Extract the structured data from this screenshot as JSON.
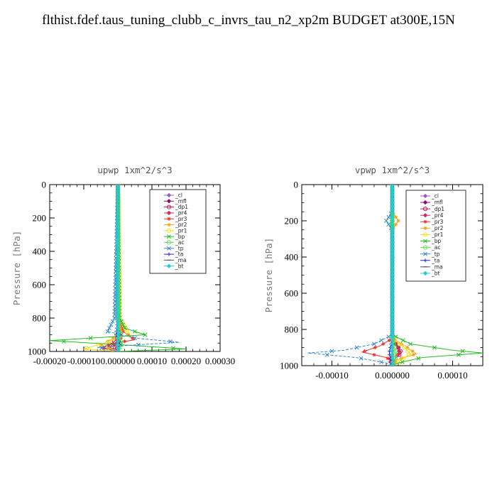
{
  "title": "flthist.fdef.taus_tuning_clubb_c_invrs_tau_n2_xp2m  BUDGET at300E,15N",
  "legend_entries": [
    "_cl",
    "_mfl",
    "_dp1",
    "_pr4",
    "_pr3",
    "_pr2",
    "_pr1",
    "_bp",
    "_ac",
    "_tp",
    "_ta",
    "_ma",
    "_bt"
  ],
  "colors": {
    "_cl": "#9b59d0",
    "_mfl": "#8b0a7a",
    "_dp1": "#c0185a",
    "_pr4": "#d2285a",
    "_pr3": "#ee3030",
    "_pr2": "#f5a020",
    "_pr1": "#f0e020",
    "_bp": "#22bb22",
    "_ac": "#66dd55",
    "_tp": "#3388cc",
    "_ta": "#2222cc",
    "_ma": "#555555",
    "_bt": "#22cccc"
  },
  "chart_data": [
    {
      "type": "line",
      "title": "upwp  1xm^2/s^3",
      "ylabel": "Pressure [hPa]",
      "xlabel": "",
      "y_inverted": true,
      "ylim": [
        1000,
        0
      ],
      "xlim": [
        -0.0002,
        0.0003
      ],
      "xticks": [
        -0.0002,
        -0.0001,
        0.0,
        0.0001,
        0.0002,
        0.0003
      ],
      "xtick_labels": [
        "-0.00020",
        "-0.00010",
        "0.000000",
        "0.00010",
        "0.00020",
        "0.00030"
      ],
      "yticks": [
        0,
        200,
        400,
        600,
        800,
        1000
      ],
      "ytick_labels": [
        "0",
        "200",
        "400",
        "600",
        "800",
        "1000"
      ],
      "legend_position": "top-right",
      "series": [
        {
          "name": "_cl",
          "pressure": [
            0,
            200,
            400,
            600,
            800,
            900,
            950,
            1000
          ],
          "values": [
            0,
            0,
            0,
            0,
            0,
            0,
            0,
            0
          ]
        },
        {
          "name": "_mfl",
          "pressure": [
            0,
            200,
            400,
            600,
            800,
            900,
            950,
            1000
          ],
          "values": [
            0,
            0,
            0,
            0,
            0,
            0,
            0,
            0
          ]
        },
        {
          "name": "_dp1",
          "pressure": [
            0,
            800,
            900,
            940,
            970,
            990,
            1000
          ],
          "values": [
            0,
            0,
            5e-06,
            -1e-05,
            -3e-05,
            -5e-06,
            0
          ]
        },
        {
          "name": "_pr4",
          "pressure": [
            0,
            800,
            900,
            930,
            960,
            990,
            1000
          ],
          "values": [
            0,
            0,
            5e-06,
            1e-05,
            -1e-05,
            0,
            0
          ]
        },
        {
          "name": "_pr3",
          "pressure": [
            0,
            800,
            880,
            930,
            950,
            975,
            1000
          ],
          "values": [
            0,
            0,
            1.5e-05,
            5e-05,
            -1e-05,
            -5e-05,
            0
          ]
        },
        {
          "name": "_pr2",
          "pressure": [
            0,
            800,
            880,
            930,
            960,
            985,
            1000
          ],
          "values": [
            0,
            0,
            1e-05,
            -2e-05,
            -5e-05,
            -2e-05,
            0
          ]
        },
        {
          "name": "_pr1",
          "pressure": [
            0,
            100,
            300,
            800,
            850,
            900,
            950,
            985,
            1000
          ],
          "values": [
            0,
            3e-06,
            3e-06,
            5e-06,
            2e-05,
            3e-05,
            -4e-05,
            -0.0001,
            0
          ]
        },
        {
          "name": "_bp",
          "pressure": [
            0,
            800,
            860,
            900,
            935,
            965,
            985,
            1000
          ],
          "values": [
            0,
            5e-06,
            2e-05,
            8e-05,
            -0.0002,
            5e-05,
            0.0002,
            0
          ]
        },
        {
          "name": "_ac",
          "pressure": [
            0,
            800,
            900,
            950,
            1000
          ],
          "values": [
            0,
            0,
            5e-06,
            1e-05,
            0
          ]
        },
        {
          "name": "_tp",
          "pressure": [
            0,
            800,
            880,
            920,
            945,
            975,
            1000
          ],
          "values": [
            0,
            -1e-05,
            -3e-05,
            5e-05,
            0.00018,
            -6e-05,
            0
          ]
        },
        {
          "name": "_ta",
          "pressure": [
            0,
            800,
            900,
            950,
            1000
          ],
          "values": [
            0,
            0,
            -5e-06,
            5e-06,
            0
          ]
        },
        {
          "name": "_ma",
          "pressure": [
            0,
            800,
            900,
            950,
            1000
          ],
          "values": [
            0,
            0,
            0,
            0,
            0
          ]
        },
        {
          "name": "_bt",
          "pressure": [
            0,
            800,
            900,
            950,
            1000
          ],
          "values": [
            0,
            0,
            0,
            0,
            0
          ]
        }
      ]
    },
    {
      "type": "line",
      "title": "vpwp  1xm^2/s^3",
      "ylabel": "Pressure [hPa]",
      "xlabel": "",
      "y_inverted": true,
      "ylim": [
        1000,
        0
      ],
      "xlim": [
        -0.00015,
        0.00015
      ],
      "xticks": [
        -0.0001,
        0.0,
        0.0001
      ],
      "xtick_labels": [
        "-0.00010",
        "0.000000",
        "0.00010"
      ],
      "yticks": [
        0,
        200,
        400,
        600,
        800,
        1000
      ],
      "ytick_labels": [
        "0",
        "200",
        "400",
        "600",
        "800",
        "1000"
      ],
      "legend_position": "top-right",
      "series": [
        {
          "name": "_cl",
          "pressure": [
            0,
            200,
            400,
            600,
            800,
            900,
            950,
            1000
          ],
          "values": [
            0,
            0,
            0,
            0,
            0,
            0,
            0,
            0
          ]
        },
        {
          "name": "_mfl",
          "pressure": [
            0,
            200,
            400,
            600,
            800,
            900,
            950,
            1000
          ],
          "values": [
            0,
            0,
            0,
            0,
            0,
            0,
            0,
            0
          ]
        },
        {
          "name": "_dp1",
          "pressure": [
            0,
            850,
            900,
            930,
            960,
            1000
          ],
          "values": [
            0,
            0,
            1e-05,
            1.5e-05,
            5e-06,
            0
          ]
        },
        {
          "name": "_pr4",
          "pressure": [
            0,
            850,
            900,
            935,
            965,
            1000
          ],
          "values": [
            0,
            0,
            1e-05,
            1.2e-05,
            -5e-06,
            0
          ]
        },
        {
          "name": "_pr3",
          "pressure": [
            0,
            850,
            890,
            925,
            955,
            985,
            1000
          ],
          "values": [
            0,
            0,
            -2e-05,
            -5e-05,
            -1e-05,
            5e-06,
            0
          ]
        },
        {
          "name": "_pr2",
          "pressure": [
            0,
            150,
            200,
            250,
            850,
            900,
            935,
            965,
            1000
          ],
          "values": [
            0,
            0,
            1e-05,
            0,
            0,
            2.5e-05,
            4e-05,
            1e-05,
            0
          ]
        },
        {
          "name": "_pr1",
          "pressure": [
            0,
            850,
            900,
            935,
            1000
          ],
          "values": [
            0,
            0,
            2e-05,
            3e-05,
            0
          ]
        },
        {
          "name": "_bp",
          "pressure": [
            0,
            830,
            880,
            915,
            930,
            955,
            985,
            1000
          ],
          "values": [
            0,
            0,
            3e-05,
            0.0001,
            0.00015,
            5e-05,
            1e-05,
            0
          ]
        },
        {
          "name": "_ac",
          "pressure": [
            0,
            850,
            920,
            970,
            1000
          ],
          "values": [
            0,
            0,
            5e-06,
            5e-06,
            0
          ]
        },
        {
          "name": "_tp",
          "pressure": [
            0,
            150,
            200,
            250,
            830,
            880,
            915,
            930,
            955,
            985,
            1000
          ],
          "values": [
            0,
            0,
            -1e-05,
            0,
            0,
            -3e-05,
            -8e-05,
            -0.00014,
            -6e-05,
            -1e-05,
            0
          ]
        },
        {
          "name": "_ta",
          "pressure": [
            0,
            850,
            930,
            1000
          ],
          "values": [
            0,
            0,
            -5e-06,
            0
          ]
        },
        {
          "name": "_ma",
          "pressure": [
            0,
            850,
            930,
            1000
          ],
          "values": [
            0,
            0,
            0,
            0
          ]
        },
        {
          "name": "_bt",
          "pressure": [
            0,
            850,
            930,
            1000
          ],
          "values": [
            0,
            0,
            0,
            0
          ]
        }
      ]
    }
  ]
}
